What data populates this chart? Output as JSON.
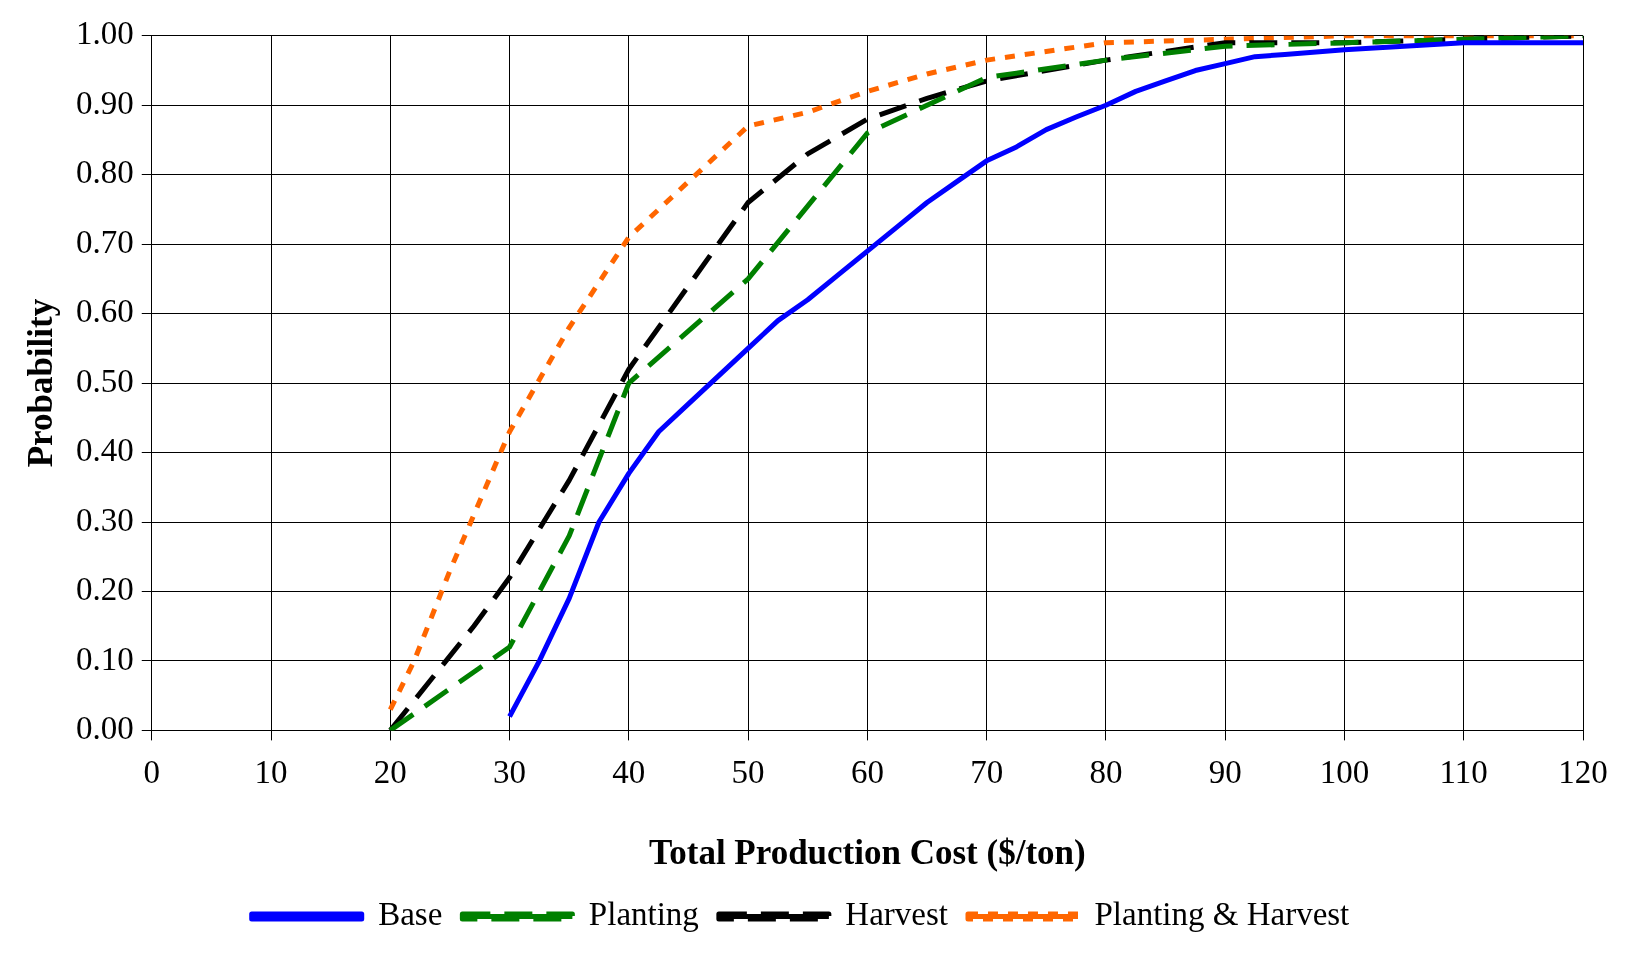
{
  "chart_data": {
    "type": "line",
    "xlabel": "Total Production Cost ($/ton)",
    "ylabel": "Probability",
    "xlim": [
      0,
      120
    ],
    "xticks": [
      0,
      10,
      20,
      30,
      40,
      50,
      60,
      70,
      80,
      90,
      100,
      110,
      120
    ],
    "ylim": [
      0,
      1
    ],
    "yticks": [
      {
        "value": 0,
        "label": "0.00"
      },
      {
        "value": 0.1,
        "label": "0.10"
      },
      {
        "value": 0.2,
        "label": "0.20"
      },
      {
        "value": 0.3,
        "label": "0.30"
      },
      {
        "value": 0.4,
        "label": "0.40"
      },
      {
        "value": 0.5,
        "label": "0.50"
      },
      {
        "value": 0.6,
        "label": "0.60"
      },
      {
        "value": 0.7,
        "label": "0.70"
      },
      {
        "value": 0.8,
        "label": "0.80"
      },
      {
        "value": 0.9,
        "label": "0.90"
      },
      {
        "value": 1,
        "label": "1.00"
      }
    ],
    "grid": true,
    "legend": "bottom",
    "marker": "none",
    "series": [
      {
        "name": "Base",
        "color": "#0000ff",
        "line_style": "solid",
        "x": [
          30,
          32.5,
          35,
          37.5,
          40,
          42.5,
          45,
          47.5,
          50,
          52.5,
          55,
          57.5,
          60,
          62.5,
          65,
          67.5,
          70,
          72.5,
          75,
          77.5,
          80,
          82.5,
          85,
          87.5,
          90,
          92.5,
          95,
          100,
          110,
          120
        ],
        "values": [
          0.02,
          0.1,
          0.19,
          0.3,
          0.37,
          0.43,
          0.47,
          0.51,
          0.55,
          0.59,
          0.62,
          0.655,
          0.69,
          0.725,
          0.76,
          0.79,
          0.82,
          0.84,
          0.865,
          0.883,
          0.9,
          0.92,
          0.935,
          0.95,
          0.96,
          0.97,
          0.973,
          0.98,
          0.99,
          0.99
        ]
      },
      {
        "name": "Planting",
        "color": "#008000",
        "line_style": "dashed",
        "x": [
          20,
          30,
          35,
          40,
          50,
          60,
          65,
          70,
          80,
          90,
          100,
          110,
          120
        ],
        "values": [
          0,
          0.12,
          0.28,
          0.5,
          0.65,
          0.86,
          0.9,
          0.94,
          0.965,
          0.985,
          0.99,
          0.995,
          1
        ]
      },
      {
        "name": "Harvest",
        "color": "#000000",
        "line_style": "dashed",
        "x": [
          20,
          27,
          30,
          35,
          40,
          45,
          50,
          55,
          60,
          65,
          70,
          80,
          90,
          100,
          110,
          120
        ],
        "values": [
          0,
          0.15,
          0.22,
          0.36,
          0.52,
          0.64,
          0.76,
          0.83,
          0.88,
          0.91,
          0.935,
          0.965,
          0.99,
          0.99,
          0.995,
          1
        ]
      },
      {
        "name": "Planting & Harvest",
        "color": "#ff6600",
        "line_style": "dotted",
        "x": [
          20,
          22,
          25,
          30,
          35,
          40,
          45,
          50,
          55,
          60,
          65,
          70,
          80,
          90,
          100,
          120
        ],
        "values": [
          0.03,
          0.1,
          0.23,
          0.43,
          0.58,
          0.71,
          0.79,
          0.87,
          0.89,
          0.92,
          0.945,
          0.965,
          0.99,
          0.995,
          1,
          1
        ]
      }
    ]
  }
}
